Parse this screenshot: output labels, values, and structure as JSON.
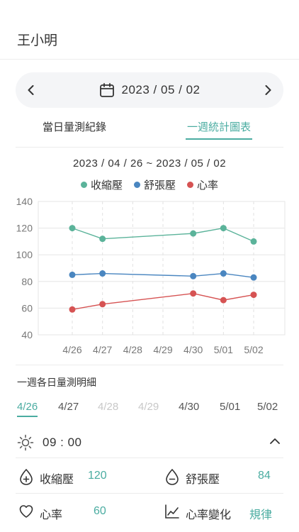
{
  "header": {
    "title": "王小明"
  },
  "date_bar": {
    "date": "2023 / 05 / 02"
  },
  "tabs": [
    {
      "label": "當日量測紀錄",
      "active": false
    },
    {
      "label": "一週統計圖表",
      "active": true
    }
  ],
  "chart_data": {
    "type": "line",
    "title": "2023 / 04 / 26 ~ 2023 / 05 / 02",
    "categories": [
      "4/26",
      "4/27",
      "4/28",
      "4/29",
      "4/30",
      "5/01",
      "5/02"
    ],
    "yticks": [
      40,
      60,
      80,
      100,
      120,
      140
    ],
    "ylim": [
      40,
      140
    ],
    "grid": true,
    "legend_position": "top-center",
    "series": [
      {
        "name": "收縮壓",
        "color": "#5bb39a",
        "values": [
          120,
          112,
          null,
          null,
          116,
          120,
          110
        ]
      },
      {
        "name": "舒張壓",
        "color": "#4a86c0",
        "values": [
          85,
          86,
          null,
          null,
          84,
          86,
          83
        ]
      },
      {
        "name": "心率",
        "color": "#d65353",
        "values": [
          59,
          63,
          null,
          null,
          71,
          66,
          70
        ]
      }
    ]
  },
  "detail": {
    "title": "一週各日量測明細",
    "days": [
      {
        "label": "4/26",
        "state": "active"
      },
      {
        "label": "4/27",
        "state": "normal"
      },
      {
        "label": "4/28",
        "state": "disabled"
      },
      {
        "label": "4/29",
        "state": "disabled"
      },
      {
        "label": "4/30",
        "state": "normal"
      },
      {
        "label": "5/01",
        "state": "normal"
      },
      {
        "label": "5/02",
        "state": "normal"
      }
    ],
    "time": "09 : 00",
    "systolic": {
      "label": "收縮壓",
      "value": "120"
    },
    "diastolic": {
      "label": "舒張壓",
      "value": "84"
    },
    "heart_rate": {
      "label": "心率",
      "value": "60"
    },
    "hr_change": {
      "label": "心率變化",
      "value": "規律"
    }
  },
  "colors": {
    "accent": "#4aaca1",
    "text": "#333333",
    "muted": "#c8c8c8"
  }
}
